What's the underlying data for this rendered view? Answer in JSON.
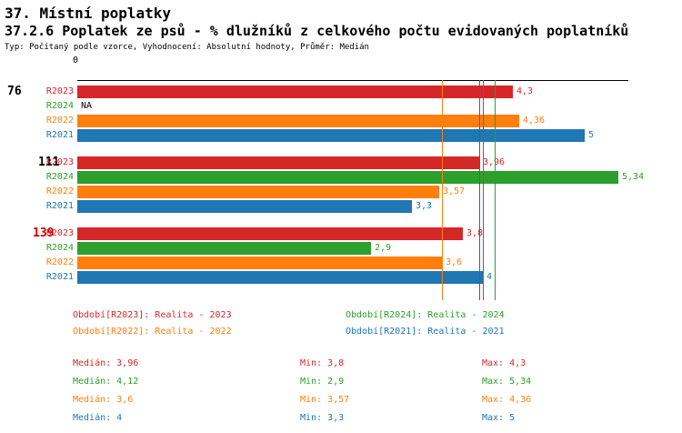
{
  "chart_data": {
    "type": "bar",
    "orientation": "horizontal",
    "title": "37. Místní poplatky",
    "subtitle": "37.2.6 Poplatek ze psů - % dlužníků z celkového počtu evidovaných poplatníků",
    "meta": "Typ: Počítaný podle vzorce, Vyhodnocení: Absolutní hodnoty, Průměr: Medián",
    "axis_zero_label": "0",
    "xlim": [
      0,
      5.6
    ],
    "grid": false,
    "series_colors": {
      "R2023": "#d62728",
      "R2024": "#2ca02c",
      "R2022": "#ff7f0e",
      "R2021": "#1f77b4"
    },
    "groups": [
      {
        "label": "76",
        "label_color": "#000000",
        "bars": [
          {
            "series": "R2023",
            "value": 4.3,
            "display": "4,3"
          },
          {
            "series": "R2024",
            "value": null,
            "display": "NA"
          },
          {
            "series": "R2022",
            "value": 4.36,
            "display": "4,36"
          },
          {
            "series": "R2021",
            "value": 5,
            "display": "5"
          }
        ]
      },
      {
        "label": "111",
        "label_color": "#000000",
        "bars": [
          {
            "series": "R2023",
            "value": 3.96,
            "display": "3,96"
          },
          {
            "series": "R2024",
            "value": 5.34,
            "display": "5,34"
          },
          {
            "series": "R2022",
            "value": 3.57,
            "display": "3,57"
          },
          {
            "series": "R2021",
            "value": 3.3,
            "display": "3,3"
          }
        ]
      },
      {
        "label": "139",
        "label_color": "#cc0000",
        "bars": [
          {
            "series": "R2023",
            "value": 3.8,
            "display": "3,8"
          },
          {
            "series": "R2024",
            "value": 2.9,
            "display": "2,9"
          },
          {
            "series": "R2022",
            "value": 3.6,
            "display": "3,6"
          },
          {
            "series": "R2021",
            "value": 4,
            "display": "4"
          }
        ]
      }
    ],
    "median_lines": [
      {
        "series": "R2023",
        "value": 3.96
      },
      {
        "series": "R2024",
        "value": 4.12
      },
      {
        "series": "R2022",
        "value": 3.6
      },
      {
        "series": "R2021",
        "value": 4
      }
    ],
    "legend": [
      {
        "label": "Období[R2023]: Realita - 2023",
        "color": "#d62728"
      },
      {
        "label": "Období[R2024]: Realita - 2024",
        "color": "#2ca02c"
      },
      {
        "label": "Období[R2022]: Realita - 2022",
        "color": "#ff7f0e"
      },
      {
        "label": "Období[R2021]: Realita - 2021",
        "color": "#1f77b4"
      }
    ],
    "stats": [
      {
        "median": "Medián: 3,96",
        "min": "Min: 3,8",
        "max": "Max: 4,3",
        "color": "#d62728"
      },
      {
        "median": "Medián: 4,12",
        "min": "Min: 2,9",
        "max": "Max: 5,34",
        "color": "#2ca02c"
      },
      {
        "median": "Medián: 3,6",
        "min": "Min: 3,57",
        "max": "Max: 4,36",
        "color": "#ff7f0e"
      },
      {
        "median": "Medián: 4",
        "min": "Min: 3,3",
        "max": "Max: 5",
        "color": "#1f77b4"
      }
    ]
  }
}
